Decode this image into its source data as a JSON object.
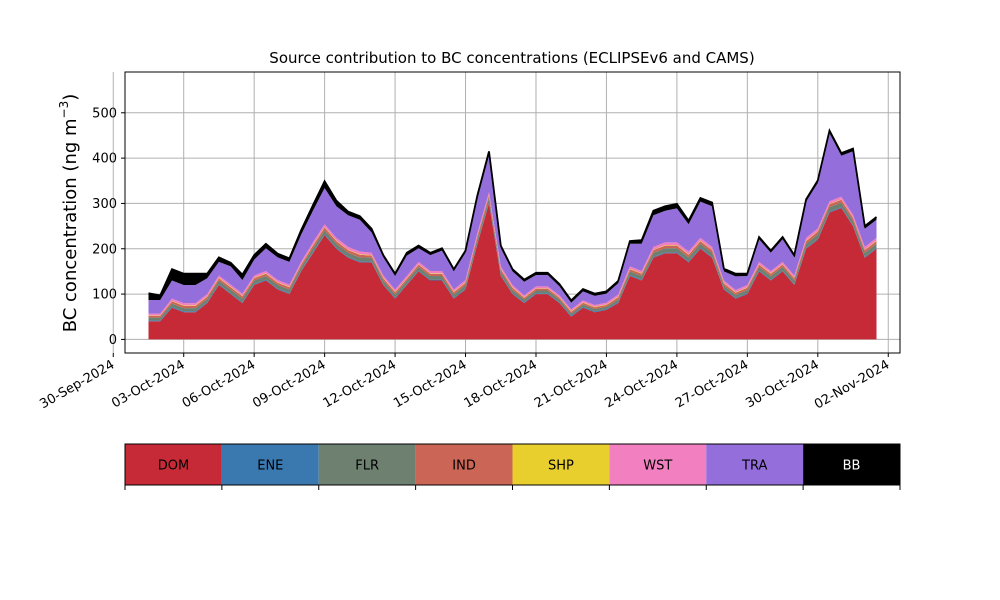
{
  "chart_data": {
    "type": "area",
    "stacked": true,
    "title": "Source contribution to BC concentrations (ECLIPSEv6 and CAMS)",
    "ylabel_main": "BC concentration (ng m",
    "ylabel_sup": "−3",
    "ylabel_close": ")",
    "xlabel": "",
    "ylim": [
      -30,
      590
    ],
    "yticks": [
      0,
      100,
      200,
      300,
      400,
      500
    ],
    "xlim": [
      "2024-09-30T12:00",
      "2024-11-02T12:00"
    ],
    "xticks": [
      "2024-09-30",
      "2024-10-03",
      "2024-10-06",
      "2024-10-09",
      "2024-10-12",
      "2024-10-15",
      "2024-10-18",
      "2024-10-21",
      "2024-10-24",
      "2024-10-27",
      "2024-10-30",
      "2024-11-02"
    ],
    "xtick_labels": [
      "30-Sep-2024",
      "03-Oct-2024",
      "06-Oct-2024",
      "09-Oct-2024",
      "12-Oct-2024",
      "15-Oct-2024",
      "18-Oct-2024",
      "21-Oct-2024",
      "24-Oct-2024",
      "27-Oct-2024",
      "30-Oct-2024",
      "02-Nov-2024"
    ],
    "grid": true,
    "x": [
      "2024-10-01T12:00",
      "2024-10-02T00:00",
      "2024-10-02T12:00",
      "2024-10-03T00:00",
      "2024-10-03T12:00",
      "2024-10-04T00:00",
      "2024-10-04T12:00",
      "2024-10-05T00:00",
      "2024-10-05T12:00",
      "2024-10-06T00:00",
      "2024-10-06T12:00",
      "2024-10-07T00:00",
      "2024-10-07T12:00",
      "2024-10-08T00:00",
      "2024-10-08T12:00",
      "2024-10-09T00:00",
      "2024-10-09T12:00",
      "2024-10-10T00:00",
      "2024-10-10T12:00",
      "2024-10-11T00:00",
      "2024-10-11T12:00",
      "2024-10-12T00:00",
      "2024-10-12T12:00",
      "2024-10-13T00:00",
      "2024-10-13T12:00",
      "2024-10-14T00:00",
      "2024-10-14T12:00",
      "2024-10-15T00:00",
      "2024-10-15T12:00",
      "2024-10-16T00:00",
      "2024-10-16T12:00",
      "2024-10-17T00:00",
      "2024-10-17T12:00",
      "2024-10-18T00:00",
      "2024-10-18T12:00",
      "2024-10-19T00:00",
      "2024-10-19T12:00",
      "2024-10-20T00:00",
      "2024-10-20T12:00",
      "2024-10-21T00:00",
      "2024-10-21T12:00",
      "2024-10-22T00:00",
      "2024-10-22T12:00",
      "2024-10-23T00:00",
      "2024-10-23T12:00",
      "2024-10-24T00:00",
      "2024-10-24T12:00",
      "2024-10-25T00:00",
      "2024-10-25T12:00",
      "2024-10-26T00:00",
      "2024-10-26T12:00",
      "2024-10-27T00:00",
      "2024-10-27T12:00",
      "2024-10-28T00:00",
      "2024-10-28T12:00",
      "2024-10-29T00:00",
      "2024-10-29T12:00",
      "2024-10-30T00:00",
      "2024-10-30T12:00",
      "2024-10-31T00:00",
      "2024-10-31T12:00",
      "2024-11-01T00:00",
      "2024-11-01T12:00"
    ],
    "series": [
      {
        "name": "DOM",
        "color": "#c62a37",
        "values": [
          40,
          40,
          70,
          60,
          60,
          80,
          120,
          100,
          80,
          120,
          130,
          110,
          100,
          150,
          190,
          230,
          200,
          180,
          170,
          170,
          120,
          90,
          120,
          150,
          130,
          130,
          90,
          110,
          210,
          300,
          140,
          100,
          80,
          100,
          100,
          80,
          50,
          70,
          60,
          65,
          80,
          140,
          130,
          180,
          190,
          190,
          170,
          200,
          180,
          110,
          90,
          100,
          150,
          130,
          150,
          120,
          200,
          220,
          280,
          290,
          250,
          180,
          200
        ]
      },
      {
        "name": "ENE",
        "color": "#3a78b0",
        "values": [
          2,
          2,
          2,
          2,
          2,
          2,
          2,
          2,
          2,
          2,
          2,
          2,
          2,
          2,
          2,
          2,
          2,
          2,
          2,
          2,
          2,
          2,
          2,
          2,
          2,
          2,
          2,
          2,
          2,
          2,
          2,
          2,
          2,
          2,
          2,
          2,
          2,
          2,
          2,
          2,
          2,
          2,
          2,
          2,
          2,
          2,
          2,
          2,
          2,
          2,
          2,
          2,
          2,
          2,
          2,
          2,
          2,
          2,
          2,
          2,
          2,
          2,
          2
        ]
      },
      {
        "name": "FLR",
        "color": "#6e8070",
        "values": [
          6,
          6,
          7,
          7,
          7,
          7,
          8,
          8,
          8,
          8,
          8,
          8,
          8,
          8,
          9,
          9,
          9,
          9,
          9,
          8,
          8,
          7,
          7,
          8,
          8,
          8,
          7,
          8,
          9,
          10,
          8,
          7,
          6,
          6,
          6,
          6,
          5,
          5,
          5,
          5,
          6,
          8,
          8,
          9,
          9,
          9,
          9,
          9,
          9,
          7,
          6,
          7,
          8,
          8,
          8,
          8,
          9,
          10,
          10,
          10,
          10,
          9,
          9
        ]
      },
      {
        "name": "IND",
        "color": "#cb6656",
        "values": [
          4,
          4,
          5,
          5,
          5,
          5,
          5,
          5,
          5,
          5,
          5,
          5,
          5,
          5,
          6,
          6,
          6,
          6,
          6,
          5,
          5,
          5,
          5,
          5,
          5,
          5,
          5,
          5,
          6,
          6,
          5,
          5,
          4,
          4,
          4,
          4,
          4,
          4,
          4,
          4,
          5,
          5,
          5,
          6,
          6,
          6,
          6,
          6,
          6,
          5,
          5,
          5,
          5,
          5,
          5,
          5,
          6,
          6,
          6,
          6,
          6,
          6,
          6
        ]
      },
      {
        "name": "SHP",
        "color": "#e8cf2e",
        "values": [
          1,
          1,
          1,
          1,
          1,
          1,
          1,
          1,
          1,
          1,
          1,
          1,
          1,
          1,
          1,
          1,
          1,
          1,
          1,
          1,
          1,
          1,
          1,
          1,
          1,
          1,
          1,
          1,
          1,
          1,
          1,
          1,
          1,
          1,
          1,
          1,
          1,
          1,
          1,
          1,
          1,
          1,
          1,
          1,
          1,
          1,
          1,
          1,
          1,
          1,
          1,
          1,
          1,
          1,
          1,
          1,
          1,
          1,
          1,
          1,
          1,
          1,
          1
        ]
      },
      {
        "name": "WST",
        "color": "#f27fbf",
        "values": [
          4,
          4,
          5,
          5,
          5,
          5,
          5,
          5,
          5,
          5,
          5,
          5,
          5,
          5,
          6,
          6,
          6,
          6,
          6,
          5,
          5,
          5,
          5,
          5,
          5,
          5,
          5,
          5,
          6,
          6,
          5,
          5,
          4,
          4,
          4,
          4,
          4,
          4,
          4,
          4,
          5,
          5,
          5,
          6,
          6,
          6,
          6,
          6,
          6,
          5,
          5,
          5,
          5,
          5,
          5,
          5,
          6,
          6,
          6,
          6,
          6,
          6,
          6
        ]
      },
      {
        "name": "TRA",
        "color": "#946edb",
        "values": [
          30,
          30,
          40,
          40,
          40,
          35,
          30,
          40,
          30,
          35,
          50,
          50,
          50,
          60,
          70,
          80,
          70,
          70,
          70,
          45,
          40,
          30,
          45,
          30,
          35,
          45,
          40,
          60,
          75,
          80,
          40,
          30,
          30,
          25,
          25,
          20,
          15,
          20,
          20,
          20,
          25,
          50,
          60,
          70,
          70,
          75,
          60,
          80,
          90,
          20,
          30,
          20,
          50,
          40,
          50,
          40,
          80,
          100,
          150,
          90,
          140,
          40,
          40
        ]
      },
      {
        "name": "BB",
        "color": "#000000",
        "values": [
          15,
          10,
          25,
          25,
          25,
          10,
          10,
          8,
          12,
          10,
          10,
          8,
          8,
          10,
          12,
          15,
          12,
          8,
          8,
          8,
          5,
          5,
          6,
          6,
          5,
          5,
          5,
          5,
          8,
          10,
          6,
          5,
          5,
          5,
          5,
          5,
          5,
          5,
          5,
          5,
          5,
          6,
          8,
          10,
          10,
          10,
          8,
          8,
          8,
          6,
          6,
          5,
          5,
          5,
          5,
          5,
          5,
          6,
          6,
          6,
          6,
          6,
          6
        ]
      }
    ],
    "legend": {
      "placement": "bottom",
      "labels": [
        "DOM",
        "ENE",
        "FLR",
        "IND",
        "SHP",
        "WST",
        "TRA",
        "BB"
      ]
    }
  }
}
